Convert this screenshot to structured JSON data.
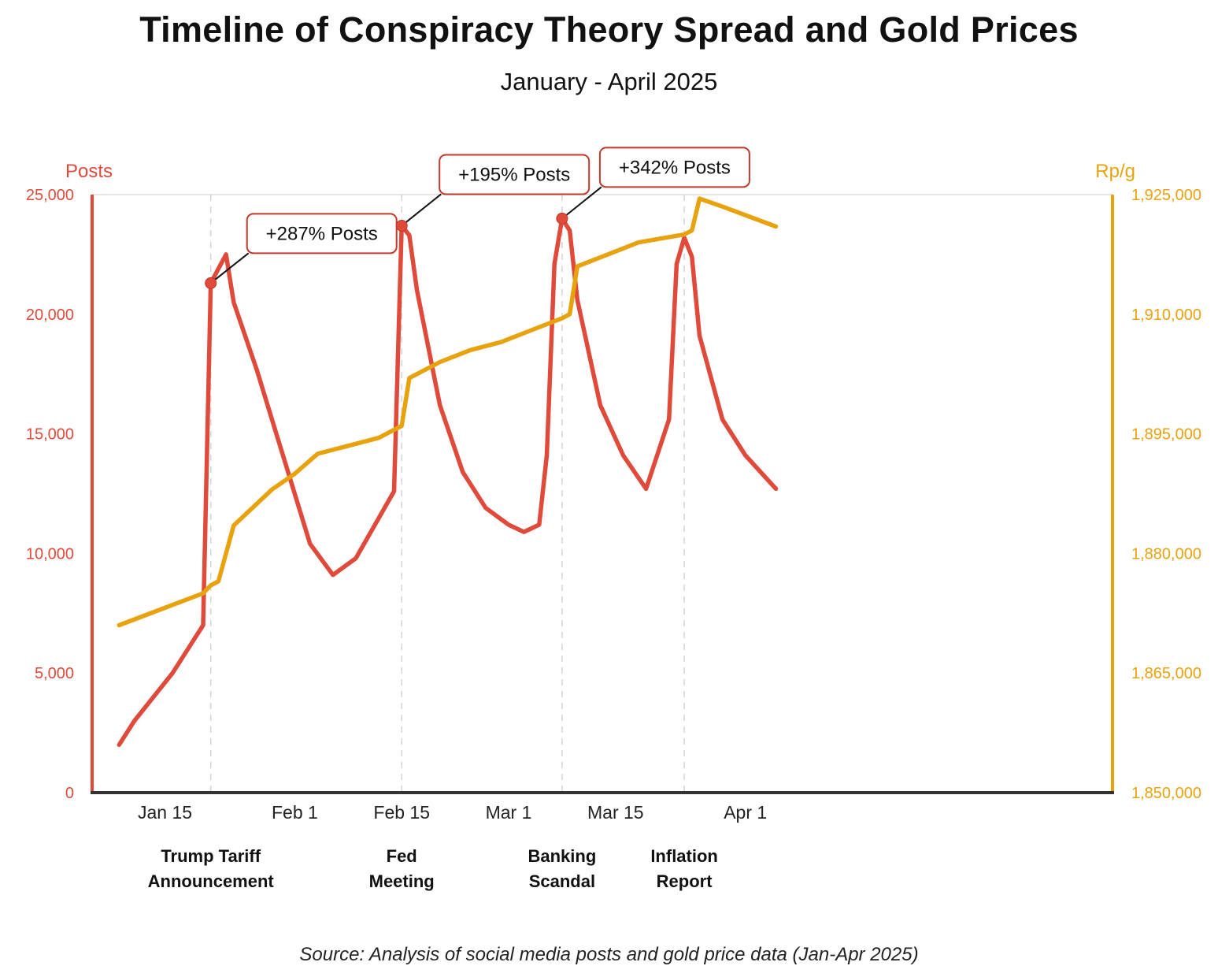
{
  "title": "Timeline of Conspiracy Theory Spread and Gold Prices",
  "subtitle": "January - April 2025",
  "source": "Source: Analysis of social media posts and gold price data (Jan-Apr 2025)",
  "colors": {
    "posts": "#e04a3a",
    "gold": "#e8a20e",
    "annotation_border": "#c0392b",
    "grid": "#dddddd"
  },
  "chart_data": {
    "type": "line",
    "title": "Timeline of Conspiracy Theory Spread and Gold Prices",
    "subtitle": "January - April 2025",
    "left_axis": {
      "label": "Posts",
      "ylim": [
        0,
        25000
      ],
      "ticks": [
        0,
        5000,
        10000,
        15000,
        20000,
        25000
      ],
      "tick_labels": [
        "0",
        "5,000",
        "10,000",
        "15,000",
        "20,000",
        "25,000"
      ]
    },
    "right_axis": {
      "label": "Rp/g",
      "ylim": [
        1850000,
        1925000
      ],
      "ticks": [
        1850000,
        1865000,
        1880000,
        1895000,
        1910000,
        1925000
      ],
      "tick_labels": [
        "1,850,000",
        "1,865,000",
        "1,880,000",
        "1,895,000",
        "1,910,000",
        "1,925,000"
      ]
    },
    "x_axis": {
      "range": [
        "2025-01-10",
        "2025-04-07"
      ],
      "ticks": [
        "2025-01-15",
        "2025-02-01",
        "2025-02-15",
        "2025-03-01",
        "2025-03-15",
        "2025-04-01"
      ],
      "tick_labels": [
        "Jan 15",
        "Feb 1",
        "Feb 15",
        "Mar 1",
        "Mar 15",
        "Apr 1"
      ]
    },
    "grid": "vertical dashed lines at events",
    "series": [
      {
        "axis": "left",
        "color": "#e04a3a",
        "x": [
          "2025-01-09",
          "2025-01-11",
          "2025-01-16",
          "2025-01-20",
          "2025-01-21",
          "2025-01-23",
          "2025-01-24",
          "2025-01-27",
          "2025-02-03",
          "2025-02-06",
          "2025-02-09",
          "2025-02-14",
          "2025-02-15",
          "2025-02-16",
          "2025-02-17",
          "2025-02-20",
          "2025-02-23",
          "2025-02-26",
          "2025-03-01",
          "2025-03-03",
          "2025-03-05",
          "2025-03-06",
          "2025-03-07",
          "2025-03-08",
          "2025-03-09",
          "2025-03-10",
          "2025-03-13",
          "2025-03-16",
          "2025-03-19",
          "2025-03-22",
          "2025-03-23",
          "2025-03-24",
          "2025-03-25",
          "2025-03-26",
          "2025-03-29",
          "2025-04-01",
          "2025-04-05"
        ],
        "values": [
          2000,
          3000,
          5000,
          7000,
          21300,
          22500,
          20500,
          17700,
          10400,
          9100,
          9800,
          12600,
          23700,
          23300,
          21000,
          16200,
          13400,
          11900,
          11200,
          10900,
          11200,
          14100,
          22100,
          24000,
          23500,
          20600,
          16200,
          14100,
          12700,
          15600,
          22100,
          23200,
          22400,
          19100,
          15600,
          14100,
          12700
        ]
      },
      {
        "axis": "right",
        "color": "#e8a20e",
        "x": [
          "2025-01-09",
          "2025-01-20",
          "2025-01-21",
          "2025-01-22",
          "2025-01-24",
          "2025-01-29",
          "2025-02-01",
          "2025-02-04",
          "2025-02-08",
          "2025-02-12",
          "2025-02-14",
          "2025-02-15",
          "2025-02-16",
          "2025-02-20",
          "2025-02-24",
          "2025-02-28",
          "2025-03-04",
          "2025-03-08",
          "2025-03-09",
          "2025-03-10",
          "2025-03-14",
          "2025-03-18",
          "2025-03-24",
          "2025-03-25",
          "2025-03-26",
          "2025-03-29",
          "2025-04-05"
        ],
        "values": [
          1871000,
          1875000,
          1876000,
          1876500,
          1883500,
          1888000,
          1890000,
          1892500,
          1893500,
          1894500,
          1895500,
          1896000,
          1902000,
          1904000,
          1905500,
          1906500,
          1908000,
          1909500,
          1910000,
          1916000,
          1917500,
          1919000,
          1920000,
          1920500,
          1924500,
          1923500,
          1921000
        ]
      }
    ],
    "events": [
      {
        "date": "2025-01-21",
        "label_line1": "Trump Tariff",
        "label_line2": "Announcement"
      },
      {
        "date": "2025-02-15",
        "label_line1": "Fed",
        "label_line2": "Meeting"
      },
      {
        "date": "2025-03-08",
        "label_line1": "Banking",
        "label_line2": "Scandal"
      },
      {
        "date": "2025-03-24",
        "label_line1": "Inflation",
        "label_line2": "Report"
      }
    ],
    "annotations": [
      {
        "text": "+287% Posts",
        "x": "2025-01-21",
        "y": 21300
      },
      {
        "text": "+195% Posts",
        "x": "2025-02-15",
        "y": 23700
      },
      {
        "text": "+342% Posts",
        "x": "2025-03-08",
        "y": 24000
      }
    ]
  }
}
